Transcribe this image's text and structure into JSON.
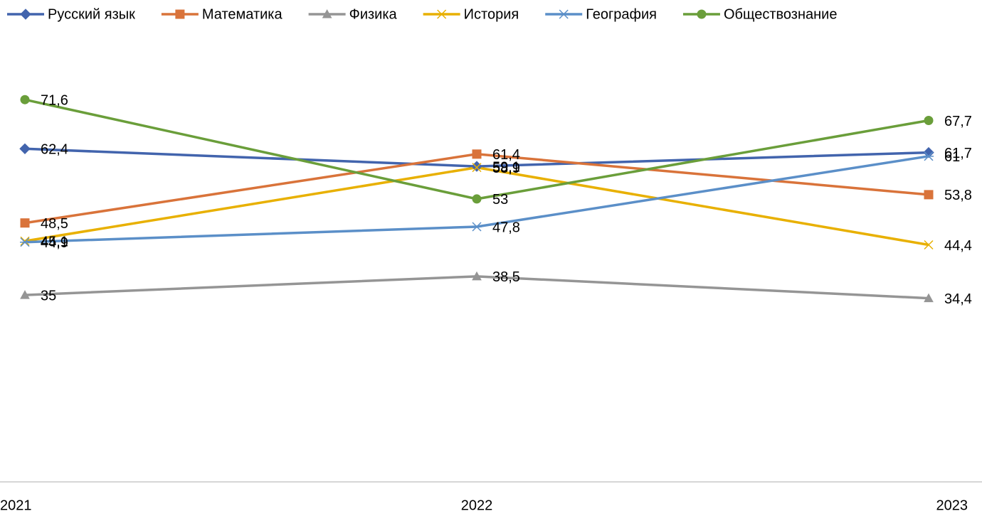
{
  "chart_data": {
    "type": "line",
    "categories": [
      "2021",
      "2022",
      "2023"
    ],
    "ylim": [
      0,
      90
    ],
    "legend": "top",
    "series": [
      {
        "name": "Русский язык",
        "color": "#4264ad",
        "marker": "diamond",
        "values": [
          62.4,
          59.1,
          61.7
        ],
        "value_labels": [
          "62,4",
          "59,1",
          "61,7"
        ]
      },
      {
        "name": "Математика",
        "color": "#d9733a",
        "marker": "square",
        "values": [
          48.5,
          61.4,
          53.8
        ],
        "value_labels": [
          "48,5",
          "61,4",
          "53,8"
        ]
      },
      {
        "name": "Физика",
        "color": "#959595",
        "marker": "triangle",
        "values": [
          35,
          38.5,
          34.4
        ],
        "value_labels": [
          "35",
          "38,5",
          "34,4"
        ]
      },
      {
        "name": "История",
        "color": "#e8b000",
        "marker": "x",
        "values": [
          45.1,
          58.9,
          44.4
        ],
        "value_labels": [
          "45,1",
          "58,9",
          "44,4"
        ]
      },
      {
        "name": "География",
        "color": "#5b8fc8",
        "marker": "star",
        "values": [
          44.9,
          47.8,
          61
        ],
        "value_labels": [
          "44,9",
          "47,8",
          "61"
        ]
      },
      {
        "name": "Обществознание",
        "color": "#6a9e3a",
        "marker": "circle",
        "values": [
          71.6,
          53,
          67.7
        ],
        "value_labels": [
          "71,6",
          "53",
          "67,7"
        ]
      }
    ]
  }
}
